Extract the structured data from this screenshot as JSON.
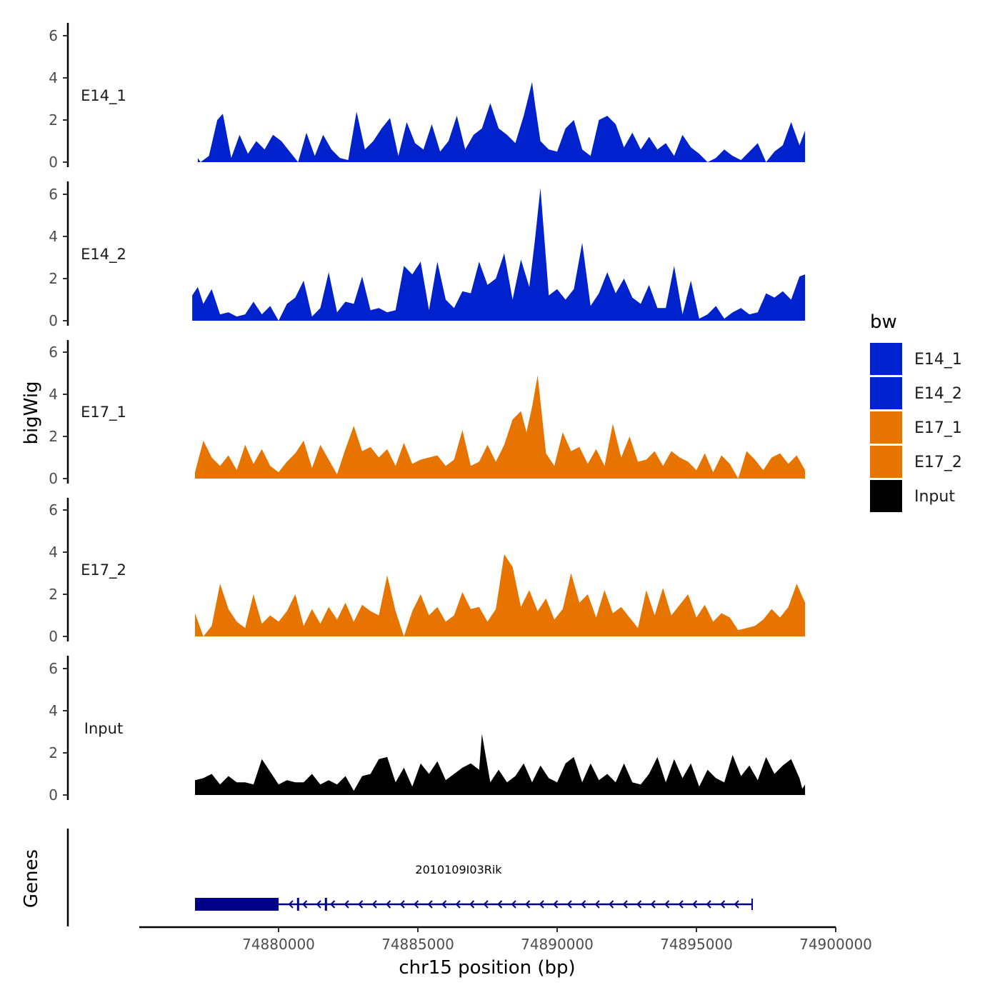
{
  "chart_data": {
    "type": "area",
    "title": "",
    "xlabel": "chr15 position (bp)",
    "ylabel": "bigWig",
    "genes_label": "Genes",
    "xlim": [
      74875000,
      74900000
    ],
    "ylim": [
      0,
      6.5
    ],
    "x_ticks": [
      74880000,
      74885000,
      74890000,
      74895000,
      74900000
    ],
    "x_tick_labels": [
      "74880000",
      "74885000",
      "74890000",
      "74895000",
      "74900000"
    ],
    "y_ticks": [
      0,
      2,
      4,
      6
    ],
    "y_tick_labels": [
      "0",
      "2",
      "4",
      "6"
    ],
    "legend": {
      "title": "bw",
      "position": "right",
      "entries": [
        {
          "label": "E14_1",
          "color": "#0022CC"
        },
        {
          "label": "E14_2",
          "color": "#0022CC"
        },
        {
          "label": "E17_1",
          "color": "#E87400"
        },
        {
          "label": "E17_2",
          "color": "#E87400"
        },
        {
          "label": "Input",
          "color": "#000000"
        }
      ]
    },
    "series": [
      {
        "name": "E14_1",
        "color": "#0022CC",
        "x": [
          74877100,
          74877200,
          74877500,
          74877800,
          74878000,
          74878300,
          74878600,
          74878900,
          74879200,
          74879500,
          74879800,
          74880100,
          74880400,
          74880700,
          74881000,
          74881300,
          74881600,
          74881900,
          74882200,
          74882500,
          74882800,
          74883100,
          74883400,
          74883700,
          74884000,
          74884300,
          74884600,
          74884900,
          74885200,
          74885500,
          74885800,
          74886100,
          74886400,
          74886700,
          74887000,
          74887300,
          74887600,
          74887900,
          74888200,
          74888500,
          74888800,
          74889100,
          74889200,
          74889400,
          74889700,
          74890000,
          74890300,
          74890600,
          74890900,
          74891200,
          74891500,
          74891800,
          74892100,
          74892400,
          74892700,
          74893000,
          74893300,
          74893600,
          74893900,
          74894200,
          74894500,
          74894800,
          74895100,
          74895400,
          74895700,
          74896000,
          74896300,
          74896600,
          74896900,
          74897200,
          74897500,
          74897800,
          74898100,
          74898400,
          74898700,
          74898900
        ],
        "values": [
          0.2,
          0.0,
          0.3,
          2.0,
          2.3,
          0.2,
          1.3,
          0.4,
          1.0,
          0.6,
          1.3,
          1.0,
          0.5,
          0.0,
          1.4,
          0.3,
          1.3,
          0.6,
          0.2,
          0.1,
          2.4,
          0.6,
          1.0,
          1.6,
          2.1,
          0.3,
          1.9,
          0.9,
          0.6,
          1.8,
          0.5,
          1.0,
          2.2,
          0.6,
          1.3,
          1.6,
          2.8,
          1.6,
          1.3,
          0.9,
          2.2,
          3.8,
          2.8,
          1.0,
          0.6,
          0.5,
          1.6,
          2.0,
          0.6,
          0.3,
          2.0,
          2.2,
          1.8,
          0.7,
          1.4,
          0.6,
          1.2,
          0.6,
          0.9,
          0.3,
          1.3,
          0.7,
          0.4,
          0.0,
          0.2,
          0.6,
          0.3,
          0.1,
          0.5,
          0.9,
          0.0,
          0.5,
          0.8,
          1.9,
          0.8,
          1.5
        ]
      },
      {
        "name": "E14_2",
        "color": "#0022CC",
        "x": [
          74876900,
          74877100,
          74877300,
          74877600,
          74877900,
          74878200,
          74878500,
          74878800,
          74879100,
          74879400,
          74879700,
          74880000,
          74880300,
          74880600,
          74880900,
          74881200,
          74881500,
          74881800,
          74882100,
          74882400,
          74882700,
          74883000,
          74883300,
          74883600,
          74883900,
          74884200,
          74884500,
          74884800,
          74885100,
          74885400,
          74885700,
          74886000,
          74886300,
          74886600,
          74886900,
          74887200,
          74887500,
          74887800,
          74888100,
          74888400,
          74888700,
          74889000,
          74889200,
          74889400,
          74889700,
          74890000,
          74890300,
          74890600,
          74890900,
          74891200,
          74891500,
          74891800,
          74892100,
          74892400,
          74892700,
          74893000,
          74893300,
          74893600,
          74893900,
          74894200,
          74894500,
          74894800,
          74895100,
          74895400,
          74895700,
          74896000,
          74896300,
          74896600,
          74896900,
          74897200,
          74897500,
          74897800,
          74898100,
          74898400,
          74898700,
          74898900
        ],
        "values": [
          1.2,
          1.6,
          0.8,
          1.5,
          0.3,
          0.4,
          0.2,
          0.3,
          0.9,
          0.3,
          0.7,
          0.0,
          0.8,
          1.1,
          1.9,
          0.2,
          0.6,
          2.3,
          0.4,
          0.9,
          0.8,
          2.1,
          0.5,
          0.6,
          0.4,
          0.5,
          2.6,
          2.2,
          2.8,
          0.5,
          2.8,
          1.0,
          0.6,
          1.4,
          1.3,
          2.8,
          1.7,
          2.0,
          3.2,
          1.0,
          2.9,
          1.6,
          3.8,
          6.3,
          1.2,
          1.5,
          1.0,
          1.5,
          3.7,
          0.7,
          1.3,
          2.3,
          1.3,
          2.0,
          1.1,
          0.8,
          1.7,
          0.6,
          0.6,
          2.6,
          0.3,
          1.9,
          0.1,
          0.3,
          0.7,
          0.1,
          0.4,
          0.6,
          0.3,
          0.4,
          1.3,
          1.1,
          1.4,
          1.0,
          2.1,
          2.2
        ]
      },
      {
        "name": "E17_1",
        "color": "#E87400",
        "x": [
          74877000,
          74877300,
          74877600,
          74877900,
          74878200,
          74878500,
          74878800,
          74879100,
          74879400,
          74879700,
          74880000,
          74880300,
          74880600,
          74880900,
          74881200,
          74881500,
          74881800,
          74882100,
          74882400,
          74882700,
          74883000,
          74883300,
          74883600,
          74883900,
          74884200,
          74884500,
          74884800,
          74885100,
          74885400,
          74885700,
          74886000,
          74886300,
          74886600,
          74886900,
          74887200,
          74887500,
          74887800,
          74888100,
          74888400,
          74888700,
          74888900,
          74889100,
          74889300,
          74889600,
          74889900,
          74890200,
          74890500,
          74890800,
          74891100,
          74891400,
          74891700,
          74892000,
          74892300,
          74892600,
          74892900,
          74893200,
          74893500,
          74893800,
          74894100,
          74894400,
          74894700,
          74895000,
          74895300,
          74895600,
          74895900,
          74896200,
          74896500,
          74896800,
          74897100,
          74897400,
          74897700,
          74898000,
          74898300,
          74898600,
          74898900
        ],
        "values": [
          0.3,
          1.8,
          1.0,
          0.6,
          1.1,
          0.4,
          1.6,
          0.7,
          1.4,
          0.6,
          0.3,
          0.8,
          1.2,
          1.8,
          0.5,
          1.6,
          0.9,
          0.2,
          1.4,
          2.5,
          1.3,
          1.5,
          1.0,
          1.4,
          0.6,
          1.7,
          0.7,
          0.9,
          1.0,
          1.1,
          0.6,
          0.9,
          2.3,
          0.6,
          0.8,
          1.6,
          0.8,
          1.6,
          2.8,
          3.2,
          2.2,
          3.4,
          4.9,
          1.2,
          0.6,
          2.2,
          1.3,
          1.5,
          0.7,
          1.4,
          0.6,
          2.6,
          1.0,
          2.0,
          0.8,
          0.9,
          1.3,
          0.6,
          1.3,
          1.0,
          0.8,
          0.4,
          1.2,
          0.3,
          1.1,
          0.7,
          0.0,
          1.3,
          0.9,
          0.4,
          1.0,
          1.2,
          0.7,
          1.1,
          0.4
        ]
      },
      {
        "name": "E17_2",
        "color": "#E87400",
        "x": [
          74877000,
          74877300,
          74877600,
          74877900,
          74878200,
          74878500,
          74878800,
          74879100,
          74879400,
          74879700,
          74880000,
          74880300,
          74880600,
          74880900,
          74881200,
          74881500,
          74881800,
          74882100,
          74882400,
          74882700,
          74883000,
          74883300,
          74883600,
          74883900,
          74884200,
          74884500,
          74884800,
          74885100,
          74885400,
          74885700,
          74886000,
          74886300,
          74886600,
          74886900,
          74887200,
          74887500,
          74887800,
          74888100,
          74888400,
          74888700,
          74889000,
          74889300,
          74889600,
          74889900,
          74890200,
          74890500,
          74890800,
          74891100,
          74891400,
          74891700,
          74892000,
          74892300,
          74892600,
          74892900,
          74893200,
          74893500,
          74893800,
          74894100,
          74894400,
          74894700,
          74895000,
          74895300,
          74895600,
          74895900,
          74896200,
          74896500,
          74896800,
          74897100,
          74897400,
          74897700,
          74898000,
          74898300,
          74898600,
          74898900
        ],
        "values": [
          1.1,
          0.0,
          0.5,
          2.5,
          1.3,
          0.7,
          0.4,
          2.0,
          0.6,
          1.0,
          0.7,
          1.2,
          2.0,
          0.5,
          1.3,
          0.6,
          1.4,
          0.8,
          1.6,
          0.7,
          1.5,
          1.2,
          1.0,
          2.9,
          1.2,
          0.0,
          1.2,
          2.0,
          1.0,
          1.4,
          0.7,
          1.0,
          2.1,
          1.3,
          1.4,
          0.7,
          1.3,
          3.9,
          3.3,
          1.4,
          2.2,
          1.2,
          1.8,
          0.8,
          1.3,
          3.0,
          1.6,
          2.0,
          0.9,
          2.2,
          1.1,
          1.4,
          0.9,
          0.4,
          2.2,
          1.0,
          2.3,
          1.0,
          1.5,
          2.0,
          0.9,
          1.5,
          0.7,
          1.1,
          0.9,
          0.3,
          0.4,
          0.5,
          0.8,
          1.3,
          0.9,
          1.4,
          2.5,
          1.6
        ]
      },
      {
        "name": "Input",
        "color": "#000000",
        "x": [
          74877000,
          74877300,
          74877600,
          74877900,
          74878200,
          74878500,
          74878800,
          74879100,
          74879400,
          74879700,
          74880000,
          74880300,
          74880600,
          74880900,
          74881200,
          74881500,
          74881800,
          74882100,
          74882400,
          74882700,
          74883000,
          74883300,
          74883600,
          74883900,
          74884200,
          74884500,
          74884800,
          74885100,
          74885400,
          74885700,
          74886000,
          74886300,
          74886600,
          74886900,
          74887200,
          74887300,
          74887600,
          74887900,
          74888200,
          74888500,
          74888800,
          74889100,
          74889400,
          74889700,
          74890000,
          74890300,
          74890600,
          74890900,
          74891200,
          74891500,
          74891800,
          74892100,
          74892400,
          74892700,
          74893000,
          74893300,
          74893600,
          74893900,
          74894200,
          74894500,
          74894800,
          74895100,
          74895400,
          74895700,
          74896000,
          74896300,
          74896600,
          74896900,
          74897200,
          74897500,
          74897800,
          74898100,
          74898400,
          74898700,
          74898800,
          74898900
        ],
        "values": [
          0.7,
          0.8,
          1.0,
          0.5,
          0.9,
          0.6,
          0.6,
          0.5,
          1.7,
          1.1,
          0.5,
          0.7,
          0.6,
          0.6,
          1.0,
          0.5,
          0.7,
          0.5,
          0.9,
          0.2,
          0.9,
          1.0,
          1.7,
          1.8,
          0.6,
          1.3,
          0.4,
          1.5,
          1.0,
          1.6,
          0.7,
          1.0,
          1.3,
          1.5,
          1.2,
          2.9,
          0.6,
          1.2,
          0.6,
          0.9,
          1.5,
          0.6,
          1.4,
          0.8,
          0.6,
          1.5,
          1.8,
          0.6,
          1.5,
          0.7,
          1.0,
          0.6,
          1.5,
          0.6,
          0.5,
          1.0,
          1.8,
          0.6,
          1.7,
          0.8,
          1.5,
          0.4,
          1.2,
          0.8,
          0.6,
          1.9,
          0.9,
          1.4,
          0.7,
          1.8,
          1.0,
          1.4,
          1.7,
          0.8,
          0.3,
          0.5
        ]
      }
    ],
    "gene": {
      "name": "2010109I03Rik",
      "color": "#00008B",
      "start": 74877000,
      "end": 74897000,
      "strand": "-",
      "thick_start": 74877000,
      "thick_end": 74880000,
      "exon_marks": [
        74880700,
        74881700
      ]
    }
  }
}
